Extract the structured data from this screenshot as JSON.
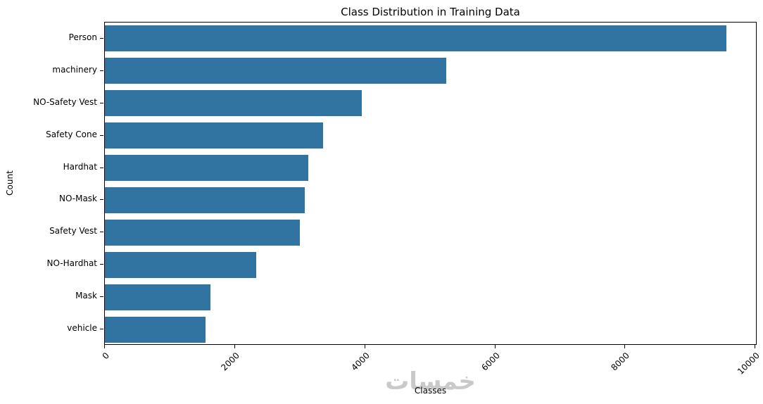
{
  "chart_data": {
    "type": "bar",
    "orientation": "horizontal",
    "title": "Class Distribution in Training Data",
    "xlabel": "Classes",
    "ylabel": "Count",
    "categories": [
      "Person",
      "machinery",
      "NO-Safety Vest",
      "Safety Cone",
      "Hardhat",
      "NO-Mask",
      "Safety Vest",
      "NO-Hardhat",
      "Mask",
      "vehicle"
    ],
    "values": [
      9550,
      5250,
      3950,
      3350,
      3125,
      3075,
      3000,
      2325,
      1625,
      1550
    ],
    "bar_color": "#3274a1",
    "xlim": [
      0,
      10030
    ],
    "xticks": [
      0,
      2000,
      4000,
      6000,
      8000,
      10000
    ],
    "xtick_rotation_deg": 45,
    "grid": false,
    "legend": null
  },
  "watermark_text": "خمسات"
}
